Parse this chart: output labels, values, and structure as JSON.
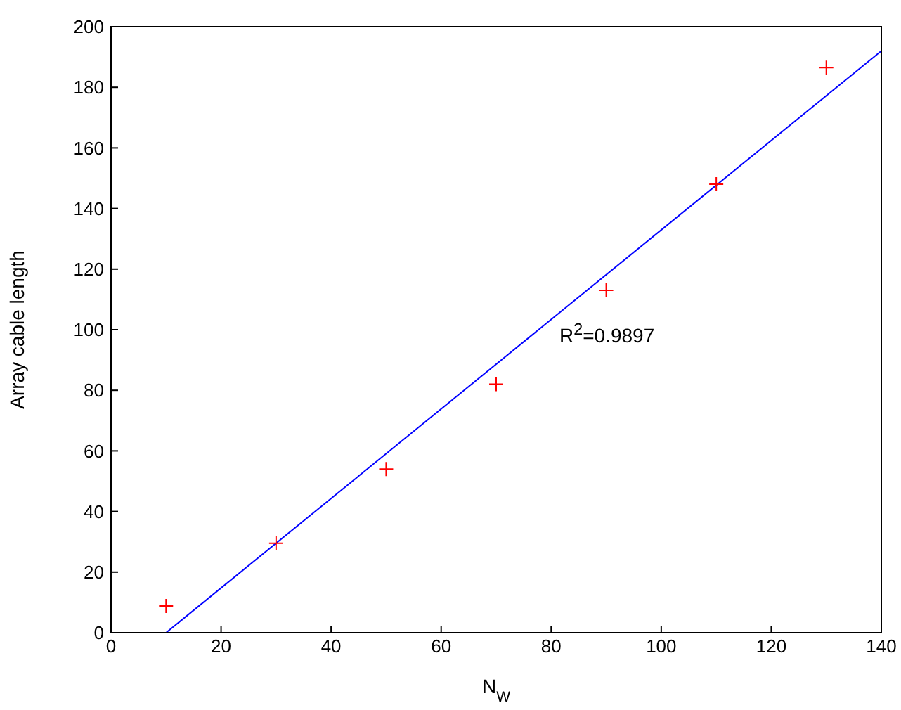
{
  "chart_data": {
    "type": "scatter",
    "xlabel": "N$_{W}$",
    "ylabel": "Array cable length",
    "xlim": [
      0,
      140
    ],
    "ylim": [
      0,
      200
    ],
    "xticks": [
      0,
      20,
      40,
      60,
      80,
      100,
      120,
      140
    ],
    "yticks": [
      0,
      20,
      40,
      60,
      80,
      100,
      120,
      140,
      160,
      180,
      200
    ],
    "series": [
      {
        "color": "#ff0000",
        "marker": "cross",
        "x": [
          10,
          30,
          50,
          70,
          90,
          110,
          130
        ],
        "values": [
          8.8,
          29.5,
          54,
          82,
          113,
          148,
          186.5
        ]
      },
      {
        "type": "line",
        "color": "#0000ff",
        "marker": "none",
        "x": [
          10,
          140
        ],
        "values": [
          0,
          192
        ]
      }
    ],
    "annotations": [
      "R$^{2}$=0.9897"
    ]
  }
}
